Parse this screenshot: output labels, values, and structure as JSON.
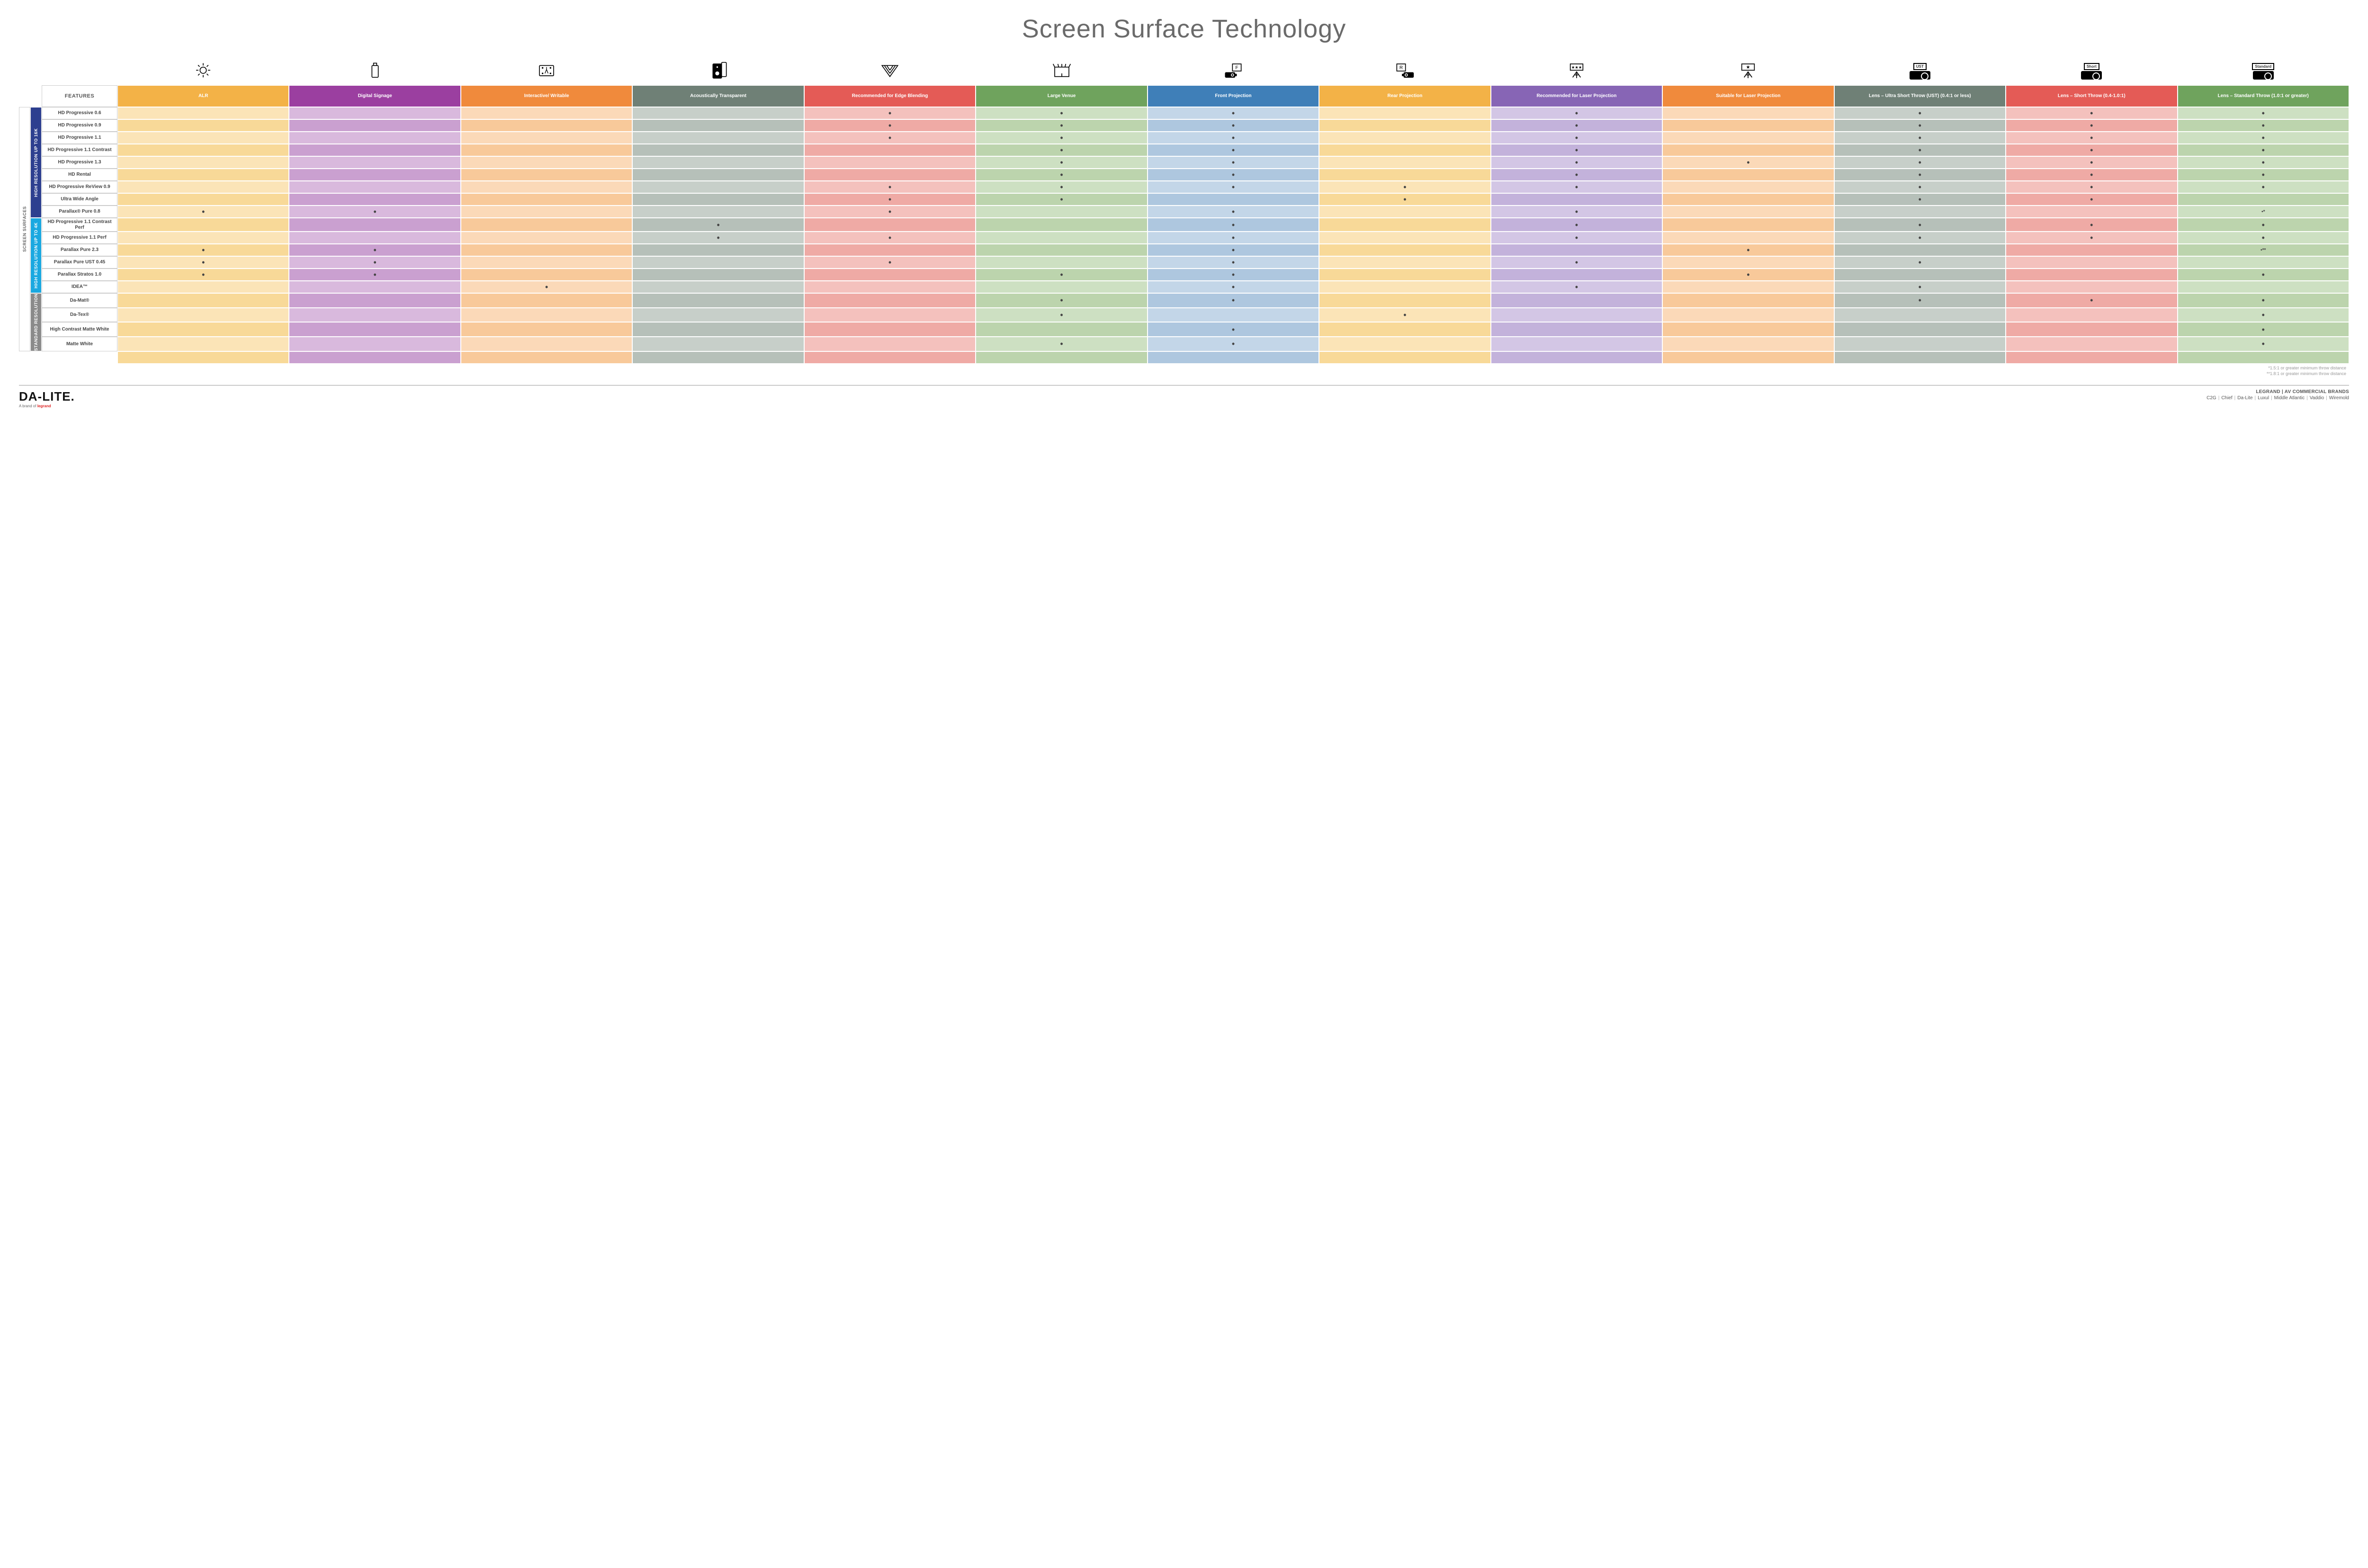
{
  "title": "Screen Surface Technology",
  "features_header": "FEATURES",
  "outer_side_label": "SCREEN SURFACES",
  "columns": [
    {
      "key": "alr",
      "label": "ALR",
      "color": "#f3b247"
    },
    {
      "key": "dig",
      "label": "Digital Signage",
      "color": "#9b3fa0"
    },
    {
      "key": "int",
      "label": "Interactive/ Writable",
      "color": "#f08a3c"
    },
    {
      "key": "aco",
      "label": "Acoustically Transparent",
      "color": "#6f8076"
    },
    {
      "key": "edge",
      "label": "Recommended for Edge Blending",
      "color": "#e45b56"
    },
    {
      "key": "large",
      "label": "Large Venue",
      "color": "#6fa35d"
    },
    {
      "key": "front",
      "label": "Front Projection",
      "color": "#3f7fb8"
    },
    {
      "key": "rear",
      "label": "Rear Projection",
      "color": "#f3b247"
    },
    {
      "key": "rec_laser",
      "label": "Recommended for Laser Projection",
      "color": "#8765b5"
    },
    {
      "key": "suit_laser",
      "label": "Suitable for Laser Projection",
      "color": "#f08a3c"
    },
    {
      "key": "ust",
      "label": "Lens – Ultra Short Throw (UST) (0.4:1 or less)",
      "color": "#6f8076"
    },
    {
      "key": "short",
      "label": "Lens – Short Throw (0.4-1.0:1)",
      "color": "#e45b56"
    },
    {
      "key": "std",
      "label": "Lens – Standard Throw (1.0:1 or greater)",
      "color": "#6fa35d"
    }
  ],
  "column_tints": {
    "alr": [
      "#fbe4b7",
      "#f8d998"
    ],
    "dig": [
      "#d9b9dd",
      "#caa0d0"
    ],
    "int": [
      "#fbd9b8",
      "#f8c99a"
    ],
    "aco": [
      "#c7cfc9",
      "#b6c0b9"
    ],
    "edge": [
      "#f4c1bd",
      "#efaaa5"
    ],
    "large": [
      "#cde0c2",
      "#bcd4ad"
    ],
    "front": [
      "#c3d6e8",
      "#aec7df"
    ],
    "rear": [
      "#fbe4b7",
      "#f8d998"
    ],
    "rec_laser": [
      "#d3c6e5",
      "#c3b2db"
    ],
    "suit_laser": [
      "#fbd9b8",
      "#f8c99a"
    ],
    "ust": [
      "#c7cfc9",
      "#b6c0b9"
    ],
    "short": [
      "#f4c1bd",
      "#efaaa5"
    ],
    "std": [
      "#cde0c2",
      "#bcd4ad"
    ]
  },
  "groups": [
    {
      "key": "g16k",
      "label": "HIGH RESOLUTION UP TO 16K",
      "color": "#2d3f8f",
      "rows": [
        {
          "name": "HD Progressive 0.6",
          "dots": {
            "edge": "•",
            "large": "•",
            "front": "•",
            "rec_laser": "•",
            "ust": "•",
            "short": "•",
            "std": "•"
          }
        },
        {
          "name": "HD Progressive 0.9",
          "dots": {
            "edge": "•",
            "large": "•",
            "front": "•",
            "rec_laser": "•",
            "ust": "•",
            "short": "•",
            "std": "•"
          }
        },
        {
          "name": "HD Progressive 1.1",
          "dots": {
            "edge": "•",
            "large": "•",
            "front": "•",
            "rec_laser": "•",
            "ust": "•",
            "short": "•",
            "std": "•"
          }
        },
        {
          "name": "HD Progressive 1.1 Contrast",
          "dots": {
            "large": "•",
            "front": "•",
            "rec_laser": "•",
            "ust": "•",
            "short": "•",
            "std": "•"
          }
        },
        {
          "name": "HD Progressive 1.3",
          "dots": {
            "large": "•",
            "front": "•",
            "rec_laser": "•",
            "suit_laser": "•",
            "ust": "•",
            "short": "•",
            "std": "•"
          }
        },
        {
          "name": "HD Rental",
          "dots": {
            "large": "•",
            "front": "•",
            "rec_laser": "•",
            "ust": "•",
            "short": "•",
            "std": "•"
          }
        },
        {
          "name": "HD Progressive ReView 0.9",
          "dots": {
            "edge": "•",
            "large": "•",
            "front": "•",
            "rear": "•",
            "rec_laser": "•",
            "ust": "•",
            "short": "•",
            "std": "•"
          }
        },
        {
          "name": "Ultra Wide Angle",
          "dots": {
            "edge": "•",
            "large": "•",
            "rear": "•",
            "ust": "•",
            "short": "•"
          }
        },
        {
          "name": "Parallax® Pure 0.8",
          "dots": {
            "alr": "•",
            "dig": "•",
            "edge": "•",
            "front": "•",
            "rec_laser": "•",
            "std": "•*"
          }
        }
      ]
    },
    {
      "key": "g4k",
      "label": "HIGH RESOLUTION UP TO 4K",
      "color": "#1aa8e0",
      "rows": [
        {
          "name": "HD Progressive 1.1 Contrast Perf",
          "dots": {
            "aco": "•",
            "front": "•",
            "rec_laser": "•",
            "ust": "•",
            "short": "•",
            "std": "•"
          }
        },
        {
          "name": "HD Progressive 1.1 Perf",
          "dots": {
            "aco": "•",
            "edge": "•",
            "front": "•",
            "rec_laser": "•",
            "ust": "•",
            "short": "•",
            "std": "•"
          }
        },
        {
          "name": "Parallax Pure 2.3",
          "dots": {
            "alr": "•",
            "dig": "•",
            "front": "•",
            "suit_laser": "•",
            "std": "•**"
          }
        },
        {
          "name": "Parallax Pure UST 0.45",
          "dots": {
            "alr": "•",
            "dig": "•",
            "edge": "•",
            "front": "•",
            "rec_laser": "•",
            "ust": "•"
          }
        },
        {
          "name": "Parallax Stratos 1.0",
          "dots": {
            "alr": "•",
            "dig": "•",
            "large": "•",
            "front": "•",
            "suit_laser": "•",
            "std": "•"
          }
        },
        {
          "name": "IDEA™",
          "dots": {
            "int": "•",
            "front": "•",
            "rec_laser": "•",
            "ust": "•"
          }
        }
      ]
    },
    {
      "key": "gstd",
      "label": "STANDARD RESOLUTION",
      "color": "#8a8a8a",
      "rows": [
        {
          "name": "Da-Mat®",
          "dots": {
            "large": "•",
            "front": "•",
            "ust": "•",
            "short": "•",
            "std": "•"
          }
        },
        {
          "name": "Da-Tex®",
          "dots": {
            "large": "•",
            "rear": "•",
            "std": "•"
          }
        },
        {
          "name": "High Contrast Matte White",
          "dots": {
            "front": "•",
            "std": "•"
          }
        },
        {
          "name": "Matte White",
          "dots": {
            "large": "•",
            "front": "•",
            "std": "•"
          }
        }
      ]
    }
  ],
  "footnotes": [
    "*1.5:1 or greater minimum throw distance",
    "**1.8:1 or greater minimum throw distance"
  ],
  "footer": {
    "logo_main": "DA-LITE.",
    "logo_sub_prefix": "A brand of ",
    "logo_sub_brand": "legrand",
    "right_line1": "LEGRAND | AV COMMERCIAL BRANDS",
    "brands": [
      "C2G",
      "Chief",
      "Da-Lite",
      "Luxul",
      "Middle Atlantic",
      "Vaddio",
      "Wiremold"
    ]
  },
  "proj_labels": {
    "ust": "UST",
    "short": "Short",
    "std": "Standard"
  }
}
